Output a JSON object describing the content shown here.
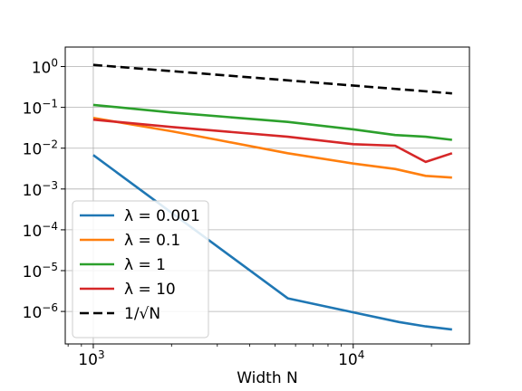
{
  "chart_data": {
    "type": "line",
    "title": "",
    "xlabel": "Width N",
    "ylabel": "",
    "xscale": "log",
    "yscale": "log",
    "xlim": [
      780,
      28000
    ],
    "ylim": [
      1.6e-07,
      3.0
    ],
    "grid": true,
    "legend_placement": "lower-left",
    "x_ticks": [
      {
        "base": "10",
        "exp": "3",
        "value": 1000
      },
      {
        "base": "10",
        "exp": "4",
        "value": 10000
      }
    ],
    "y_ticks": [
      {
        "base": "10",
        "exp": "0",
        "value": 1
      },
      {
        "base": "10",
        "exp": "−1",
        "value": 0.1
      },
      {
        "base": "10",
        "exp": "−2",
        "value": 0.01
      },
      {
        "base": "10",
        "exp": "−3",
        "value": 0.001
      },
      {
        "base": "10",
        "exp": "−4",
        "value": 0.0001
      },
      {
        "base": "10",
        "exp": "−5",
        "value": 1e-05
      },
      {
        "base": "10",
        "exp": "−6",
        "value": 1e-06
      }
    ],
    "series": [
      {
        "name": "λ = 0.001",
        "color": "#1f77b4",
        "dashed": false,
        "x": [
          1000,
          5600,
          10000,
          15000,
          19000,
          24000
        ],
        "y": [
          0.0068,
          2.1e-06,
          9.5e-07,
          5.5e-07,
          4.3e-07,
          3.6e-07
        ]
      },
      {
        "name": "λ = 0.1",
        "color": "#ff7f0e",
        "dashed": false,
        "x": [
          1000,
          2000,
          3000,
          5600,
          10000,
          14500,
          19000,
          24000
        ],
        "y": [
          0.055,
          0.026,
          0.016,
          0.0075,
          0.0042,
          0.0031,
          0.0021,
          0.0019
        ]
      },
      {
        "name": "λ = 1",
        "color": "#2ca02c",
        "dashed": false,
        "x": [
          1000,
          2000,
          5600,
          10000,
          14500,
          19000,
          24000
        ],
        "y": [
          0.115,
          0.075,
          0.044,
          0.029,
          0.021,
          0.019,
          0.016
        ]
      },
      {
        "name": "λ = 10",
        "color": "#d62728",
        "dashed": false,
        "x": [
          1000,
          2000,
          5600,
          10000,
          14500,
          19000,
          24000
        ],
        "y": [
          0.05,
          0.033,
          0.019,
          0.0125,
          0.0115,
          0.0046,
          0.0075
        ]
      },
      {
        "name": "1/√N",
        "color": "#000000",
        "dashed": true,
        "x": [
          1000,
          24000
        ],
        "y": [
          1.1,
          0.22
        ]
      }
    ]
  }
}
